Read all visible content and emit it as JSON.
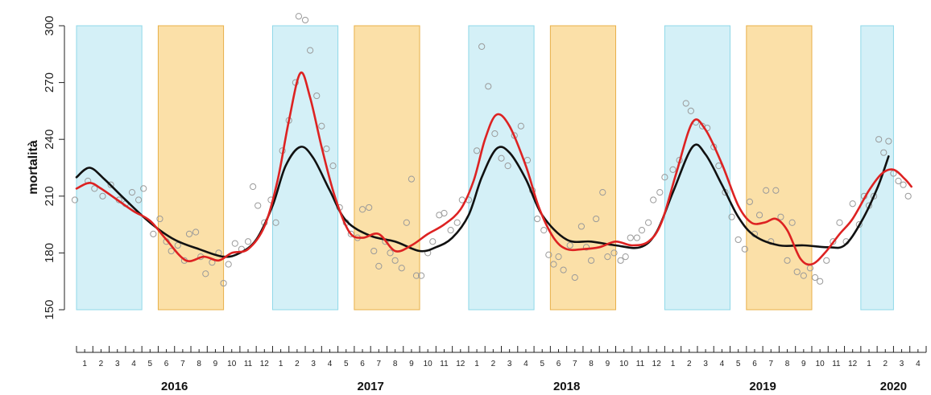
{
  "chart_data": {
    "type": "scatter",
    "title": "",
    "xlabel": "",
    "ylabel": "mortalità",
    "ylim": [
      150,
      300
    ],
    "yticks": [
      150,
      180,
      210,
      240,
      270,
      300
    ],
    "xlim": [
      0.5,
      52.5
    ],
    "month_labels": [
      "1",
      "2",
      "3",
      "4",
      "5",
      "6",
      "7",
      "8",
      "9",
      "10",
      "11",
      "12"
    ],
    "final_month_labels": [
      "1",
      "2",
      "3",
      "4"
    ],
    "years": [
      {
        "label": "2016",
        "start": 1,
        "end": 12
      },
      {
        "label": "2017",
        "start": 13,
        "end": 24
      },
      {
        "label": "2018",
        "start": 25,
        "end": 36
      },
      {
        "label": "2019",
        "start": 37,
        "end": 48
      },
      {
        "label": "2020",
        "start": 49,
        "end": 52
      }
    ],
    "bands": [
      {
        "kind": "winter",
        "color": "#d4f0f7",
        "border": "#8fd8e8",
        "x0": 1,
        "x1": 4
      },
      {
        "kind": "summer",
        "color": "#fbe0a8",
        "border": "#e8b04a",
        "x0": 6,
        "x1": 9
      },
      {
        "kind": "winter",
        "color": "#d4f0f7",
        "border": "#8fd8e8",
        "x0": 13,
        "x1": 16
      },
      {
        "kind": "summer",
        "color": "#fbe0a8",
        "border": "#e8b04a",
        "x0": 18,
        "x1": 21
      },
      {
        "kind": "winter",
        "color": "#d4f0f7",
        "border": "#8fd8e8",
        "x0": 25,
        "x1": 28
      },
      {
        "kind": "summer",
        "color": "#fbe0a8",
        "border": "#e8b04a",
        "x0": 30,
        "x1": 33
      },
      {
        "kind": "winter",
        "color": "#d4f0f7",
        "border": "#8fd8e8",
        "x0": 37,
        "x1": 40
      },
      {
        "kind": "summer",
        "color": "#fbe0a8",
        "border": "#e8b04a",
        "x0": 42,
        "x1": 45
      },
      {
        "kind": "winter",
        "color": "#d4f0f7",
        "border": "#8fd8e8",
        "x0": 49,
        "x1": 50
      }
    ],
    "points": [
      [
        0.4,
        208
      ],
      [
        1.2,
        218
      ],
      [
        1.6,
        214
      ],
      [
        2.1,
        210
      ],
      [
        2.6,
        216
      ],
      [
        3.1,
        208
      ],
      [
        3.5,
        206
      ],
      [
        3.9,
        212
      ],
      [
        4.3,
        208
      ],
      [
        4.6,
        214
      ],
      [
        5.2,
        190
      ],
      [
        5.6,
        198
      ],
      [
        6.0,
        186
      ],
      [
        6.3,
        181
      ],
      [
        6.7,
        184
      ],
      [
        7.1,
        176
      ],
      [
        7.4,
        190
      ],
      [
        7.8,
        191
      ],
      [
        8.1,
        178
      ],
      [
        8.4,
        169
      ],
      [
        8.8,
        175
      ],
      [
        9.2,
        180
      ],
      [
        9.5,
        164
      ],
      [
        9.8,
        174
      ],
      [
        10.2,
        185
      ],
      [
        10.6,
        182
      ],
      [
        11.0,
        186
      ],
      [
        11.3,
        215
      ],
      [
        11.6,
        205
      ],
      [
        12.0,
        196
      ],
      [
        12.4,
        208
      ],
      [
        12.7,
        196
      ],
      [
        13.1,
        234
      ],
      [
        13.5,
        250
      ],
      [
        13.9,
        270
      ],
      [
        14.1,
        305
      ],
      [
        14.5,
        303
      ],
      [
        14.8,
        287
      ],
      [
        15.2,
        263
      ],
      [
        15.5,
        247
      ],
      [
        15.8,
        235
      ],
      [
        16.2,
        226
      ],
      [
        16.6,
        204
      ],
      [
        17.0,
        196
      ],
      [
        17.3,
        190
      ],
      [
        17.7,
        188
      ],
      [
        18.0,
        203
      ],
      [
        18.4,
        204
      ],
      [
        18.7,
        181
      ],
      [
        19.0,
        173
      ],
      [
        19.4,
        186
      ],
      [
        19.7,
        180
      ],
      [
        20.0,
        176
      ],
      [
        20.4,
        172
      ],
      [
        20.7,
        196
      ],
      [
        21.0,
        219
      ],
      [
        21.3,
        168
      ],
      [
        21.6,
        168
      ],
      [
        22.0,
        180
      ],
      [
        22.3,
        186
      ],
      [
        22.7,
        200
      ],
      [
        23.0,
        201
      ],
      [
        23.4,
        192
      ],
      [
        23.8,
        196
      ],
      [
        24.1,
        208
      ],
      [
        24.5,
        208
      ],
      [
        25.0,
        234
      ],
      [
        25.3,
        289
      ],
      [
        25.7,
        268
      ],
      [
        26.1,
        243
      ],
      [
        26.5,
        230
      ],
      [
        26.9,
        226
      ],
      [
        27.3,
        242
      ],
      [
        27.7,
        247
      ],
      [
        28.1,
        229
      ],
      [
        28.4,
        213
      ],
      [
        28.7,
        198
      ],
      [
        29.1,
        192
      ],
      [
        29.4,
        179
      ],
      [
        29.7,
        174
      ],
      [
        30.0,
        178
      ],
      [
        30.3,
        171
      ],
      [
        30.7,
        184
      ],
      [
        31.0,
        167
      ],
      [
        31.4,
        194
      ],
      [
        31.7,
        183
      ],
      [
        32.0,
        176
      ],
      [
        32.3,
        198
      ],
      [
        32.7,
        212
      ],
      [
        33.0,
        178
      ],
      [
        33.4,
        180
      ],
      [
        33.8,
        176
      ],
      [
        34.1,
        178
      ],
      [
        34.4,
        188
      ],
      [
        34.8,
        188
      ],
      [
        35.1,
        192
      ],
      [
        35.5,
        196
      ],
      [
        35.8,
        208
      ],
      [
        36.2,
        212
      ],
      [
        36.5,
        220
      ],
      [
        37.0,
        224
      ],
      [
        37.4,
        229
      ],
      [
        37.8,
        259
      ],
      [
        38.1,
        255
      ],
      [
        38.4,
        249
      ],
      [
        38.8,
        247
      ],
      [
        39.1,
        246
      ],
      [
        39.5,
        236
      ],
      [
        39.8,
        226
      ],
      [
        40.2,
        212
      ],
      [
        40.6,
        199
      ],
      [
        41.0,
        187
      ],
      [
        41.4,
        182
      ],
      [
        41.7,
        207
      ],
      [
        42.0,
        190
      ],
      [
        42.3,
        200
      ],
      [
        42.7,
        213
      ],
      [
        43.0,
        186
      ],
      [
        43.3,
        213
      ],
      [
        43.6,
        199
      ],
      [
        44.0,
        176
      ],
      [
        44.3,
        196
      ],
      [
        44.6,
        170
      ],
      [
        45.0,
        168
      ],
      [
        45.4,
        172
      ],
      [
        45.7,
        167
      ],
      [
        46.0,
        165
      ],
      [
        46.4,
        176
      ],
      [
        46.8,
        186
      ],
      [
        47.2,
        196
      ],
      [
        47.6,
        186
      ],
      [
        48.0,
        206
      ],
      [
        48.4,
        195
      ],
      [
        48.7,
        210
      ],
      [
        49.0,
        205
      ],
      [
        49.3,
        210
      ],
      [
        49.6,
        240
      ],
      [
        49.9,
        233
      ],
      [
        50.2,
        239
      ],
      [
        50.5,
        222
      ],
      [
        50.8,
        218
      ],
      [
        51.1,
        216
      ],
      [
        51.4,
        210
      ]
    ],
    "series": [
      {
        "color": "#111111",
        "points": [
          [
            0.5,
            220
          ],
          [
            1.3,
            225
          ],
          [
            2.2,
            219
          ],
          [
            3.5,
            208
          ],
          [
            5.0,
            196
          ],
          [
            6.5,
            187
          ],
          [
            8.0,
            182
          ],
          [
            9.5,
            178
          ],
          [
            10.5,
            180
          ],
          [
            11.5,
            187
          ],
          [
            12.5,
            205
          ],
          [
            13.3,
            226
          ],
          [
            14.2,
            236
          ],
          [
            15.0,
            230
          ],
          [
            16.0,
            213
          ],
          [
            17.0,
            197
          ],
          [
            18.5,
            189
          ],
          [
            20.0,
            186
          ],
          [
            21.5,
            181
          ],
          [
            22.5,
            183
          ],
          [
            23.5,
            188
          ],
          [
            24.5,
            200
          ],
          [
            25.3,
            220
          ],
          [
            26.2,
            235
          ],
          [
            27.0,
            233
          ],
          [
            28.0,
            219
          ],
          [
            29.0,
            200
          ],
          [
            30.5,
            187
          ],
          [
            32.0,
            186
          ],
          [
            33.5,
            184
          ],
          [
            35.0,
            183
          ],
          [
            36.0,
            191
          ],
          [
            37.0,
            212
          ],
          [
            38.2,
            236
          ],
          [
            39.0,
            232
          ],
          [
            40.0,
            216
          ],
          [
            41.0,
            199
          ],
          [
            42.0,
            189
          ],
          [
            43.5,
            184
          ],
          [
            45.0,
            184
          ],
          [
            46.5,
            183
          ],
          [
            47.5,
            184
          ],
          [
            48.5,
            196
          ],
          [
            49.5,
            214
          ],
          [
            50.2,
            231
          ]
        ]
      },
      {
        "color": "#dd2222",
        "points": [
          [
            0.5,
            214
          ],
          [
            1.3,
            217
          ],
          [
            2.0,
            214
          ],
          [
            3.0,
            208
          ],
          [
            4.0,
            202
          ],
          [
            5.0,
            197
          ],
          [
            6.0,
            187
          ],
          [
            7.2,
            176
          ],
          [
            8.3,
            178
          ],
          [
            9.2,
            176
          ],
          [
            10.0,
            180
          ],
          [
            11.0,
            182
          ],
          [
            12.0,
            194
          ],
          [
            12.8,
            218
          ],
          [
            13.5,
            250
          ],
          [
            14.2,
            275
          ],
          [
            14.8,
            262
          ],
          [
            15.5,
            236
          ],
          [
            16.3,
            210
          ],
          [
            17.2,
            191
          ],
          [
            18.0,
            188
          ],
          [
            19.0,
            190
          ],
          [
            20.0,
            181
          ],
          [
            21.0,
            184
          ],
          [
            22.0,
            190
          ],
          [
            23.0,
            195
          ],
          [
            24.0,
            203
          ],
          [
            24.8,
            218
          ],
          [
            25.5,
            240
          ],
          [
            26.2,
            253
          ],
          [
            27.0,
            247
          ],
          [
            28.0,
            226
          ],
          [
            28.8,
            204
          ],
          [
            29.7,
            188
          ],
          [
            30.5,
            182
          ],
          [
            31.5,
            182
          ],
          [
            32.5,
            183
          ],
          [
            33.5,
            186
          ],
          [
            34.5,
            184
          ],
          [
            35.5,
            186
          ],
          [
            36.3,
            196
          ],
          [
            37.2,
            222
          ],
          [
            38.2,
            249
          ],
          [
            39.0,
            245
          ],
          [
            40.0,
            227
          ],
          [
            41.0,
            205
          ],
          [
            41.8,
            196
          ],
          [
            42.6,
            196
          ],
          [
            43.3,
            198
          ],
          [
            44.0,
            192
          ],
          [
            44.8,
            177
          ],
          [
            45.5,
            174
          ],
          [
            46.3,
            180
          ],
          [
            47.2,
            190
          ],
          [
            48.0,
            198
          ],
          [
            49.0,
            213
          ],
          [
            49.8,
            222
          ],
          [
            50.5,
            224
          ],
          [
            51.2,
            219
          ],
          [
            51.6,
            215
          ]
        ]
      }
    ]
  }
}
